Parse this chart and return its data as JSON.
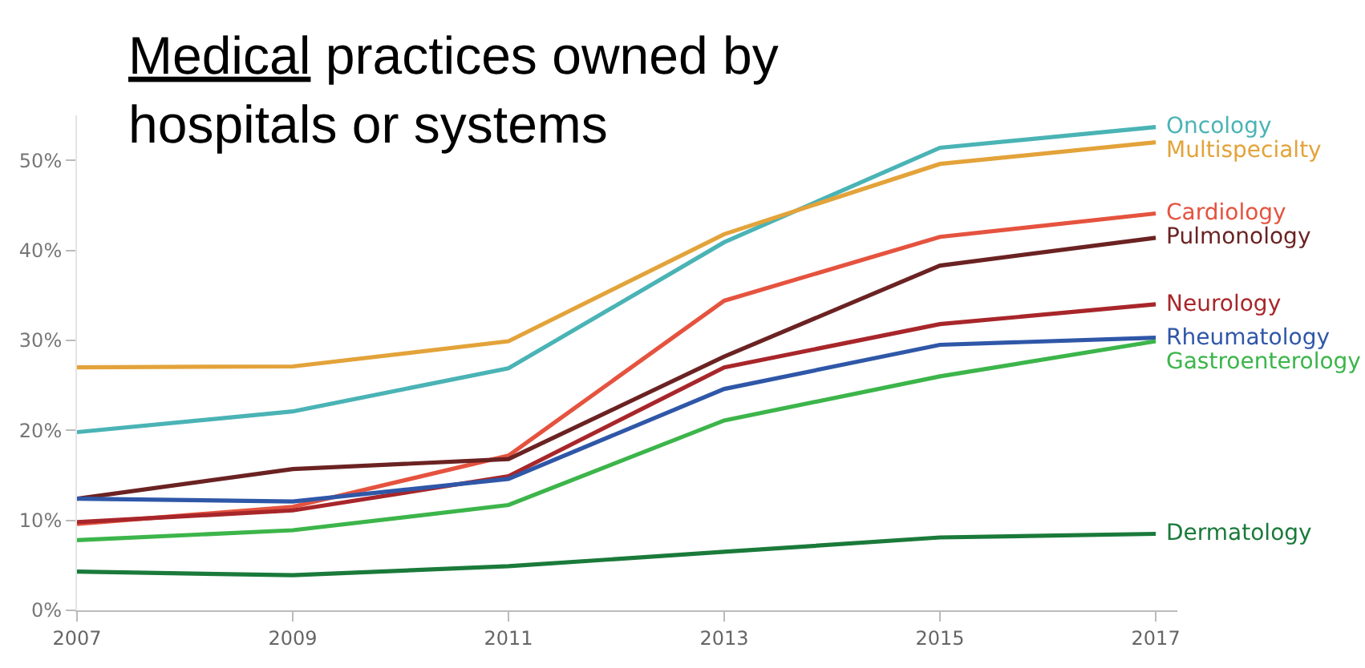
{
  "chart_data": {
    "type": "line",
    "title": "Medical practices owned by hospitals or systems",
    "x": [
      2007,
      2009,
      2011,
      2013,
      2015,
      2017
    ],
    "xlim": [
      2007,
      2017.2
    ],
    "xticks": [
      2007,
      2009,
      2011,
      2013,
      2015,
      2017
    ],
    "ylim": [
      0,
      55
    ],
    "yticks": [
      {
        "value": 0,
        "label": "0%"
      },
      {
        "value": 10,
        "label": "10%"
      },
      {
        "value": 20,
        "label": "20%"
      },
      {
        "value": 30,
        "label": "30%"
      },
      {
        "value": 40,
        "label": "40%"
      },
      {
        "value": 50,
        "label": "50%"
      }
    ],
    "legend": false,
    "marker": "none",
    "line_style": "solid",
    "series": [
      {
        "name": "Oncology",
        "color": "#4ab3b5",
        "values": [
          19.8,
          22.1,
          26.9,
          40.9,
          51.4,
          53.7
        ]
      },
      {
        "name": "Multispecialty",
        "color": "#e3a33a",
        "values": [
          27.0,
          27.1,
          29.9,
          41.8,
          49.6,
          52.0
        ]
      },
      {
        "name": "Cardiology",
        "color": "#e5533f",
        "values": [
          9.6,
          11.5,
          17.2,
          34.4,
          41.5,
          44.1
        ]
      },
      {
        "name": "Pulmonology",
        "color": "#6b2222",
        "values": [
          12.4,
          15.7,
          16.8,
          28.2,
          38.3,
          41.4
        ]
      },
      {
        "name": "Neurology",
        "color": "#a8262a",
        "values": [
          9.8,
          11.1,
          14.9,
          27.0,
          31.8,
          34.0
        ]
      },
      {
        "name": "Rheumatology",
        "color": "#2f57a8",
        "values": [
          12.4,
          12.1,
          14.6,
          24.6,
          29.5,
          30.3
        ]
      },
      {
        "name": "Gastroenterology",
        "color": "#3cb54a",
        "values": [
          7.8,
          8.9,
          11.7,
          21.1,
          26.0,
          29.9
        ]
      },
      {
        "name": "Dermatology",
        "color": "#1a7a3a",
        "values": [
          4.3,
          3.9,
          4.9,
          6.5,
          8.1,
          8.5
        ]
      }
    ]
  }
}
